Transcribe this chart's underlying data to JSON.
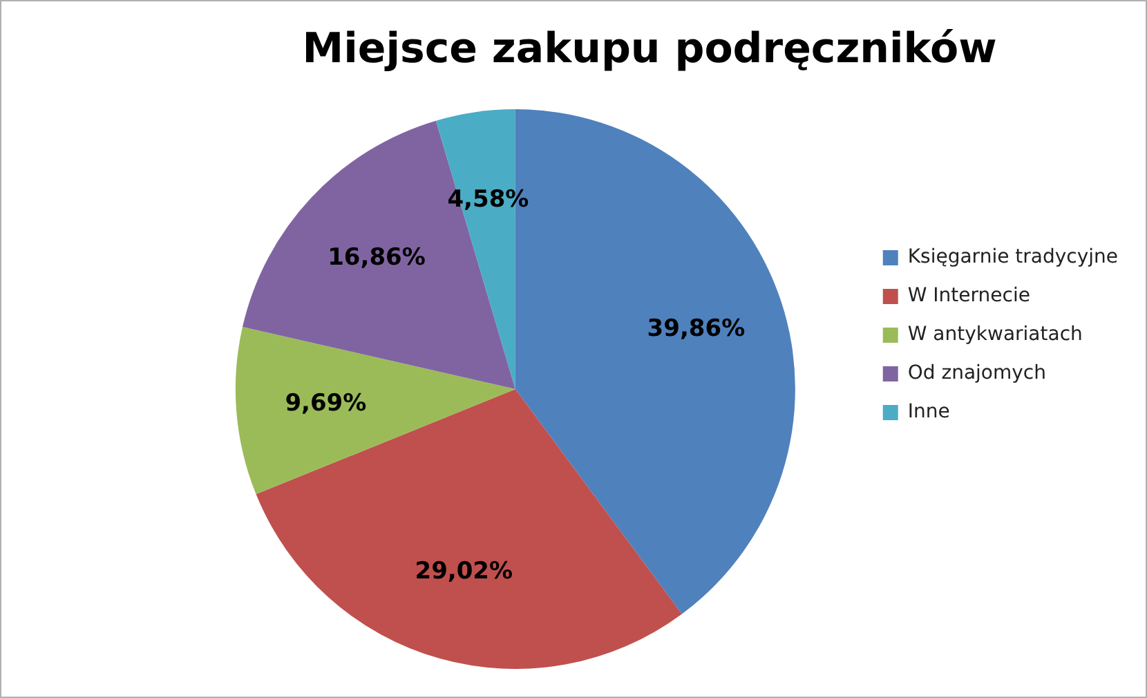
{
  "chart_data": {
    "type": "pie",
    "title": "Miejsce zakupu podręczników",
    "categories": [
      "Księgarnie tradycyjne",
      "W Internecie",
      "W antykwariatach",
      "Od znajomych",
      "Inne"
    ],
    "values": [
      39.86,
      29.02,
      9.69,
      16.86,
      4.58
    ],
    "colors": [
      "#4f81bd",
      "#c0504d",
      "#9bbb59",
      "#8064a2",
      "#4bacc6"
    ],
    "value_labels": [
      "39,86%",
      "29,02%",
      "9,69%",
      "16,86%",
      "4,58%"
    ],
    "legend": "right"
  }
}
